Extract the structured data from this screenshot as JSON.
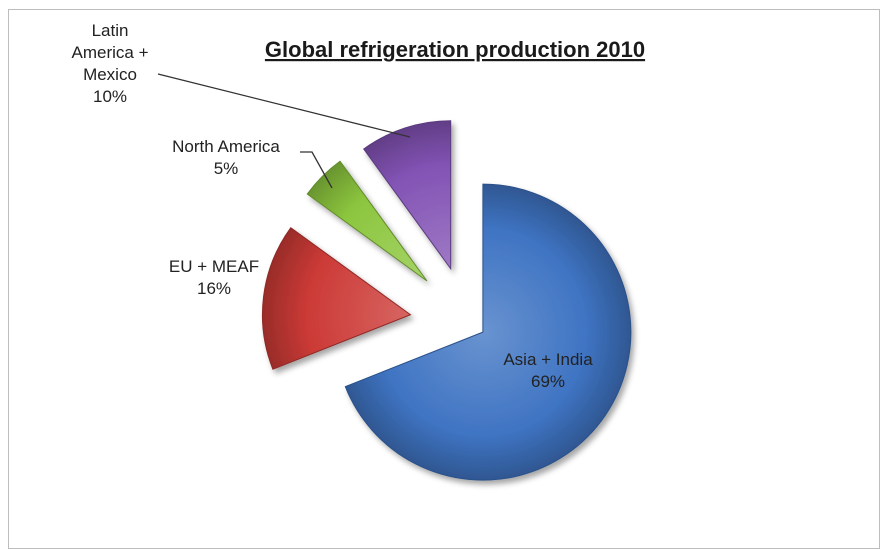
{
  "chart_data": {
    "type": "pie",
    "exploded": true,
    "title": "Global refrigeration production 2010",
    "slices": [
      {
        "label": "Asia + India",
        "value": 69,
        "value_label": "69%",
        "color": "#3f74c3"
      },
      {
        "label": "EU + MEAF",
        "value": 16,
        "value_label": "16%",
        "color": "#cc3a36"
      },
      {
        "label": "North America",
        "value": 5,
        "value_label": "5%",
        "color": "#8cc63e"
      },
      {
        "label": "Latin America + Mexico",
        "value": 10,
        "value_label": "10%",
        "color": "#8253b4"
      }
    ],
    "slice_label_lines": [
      [
        "Asia + India",
        "69%"
      ],
      [
        "EU + MEAF",
        "16%"
      ],
      [
        "North America",
        "5%"
      ],
      [
        "Latin",
        "America +",
        "Mexico",
        "10%"
      ]
    ]
  }
}
